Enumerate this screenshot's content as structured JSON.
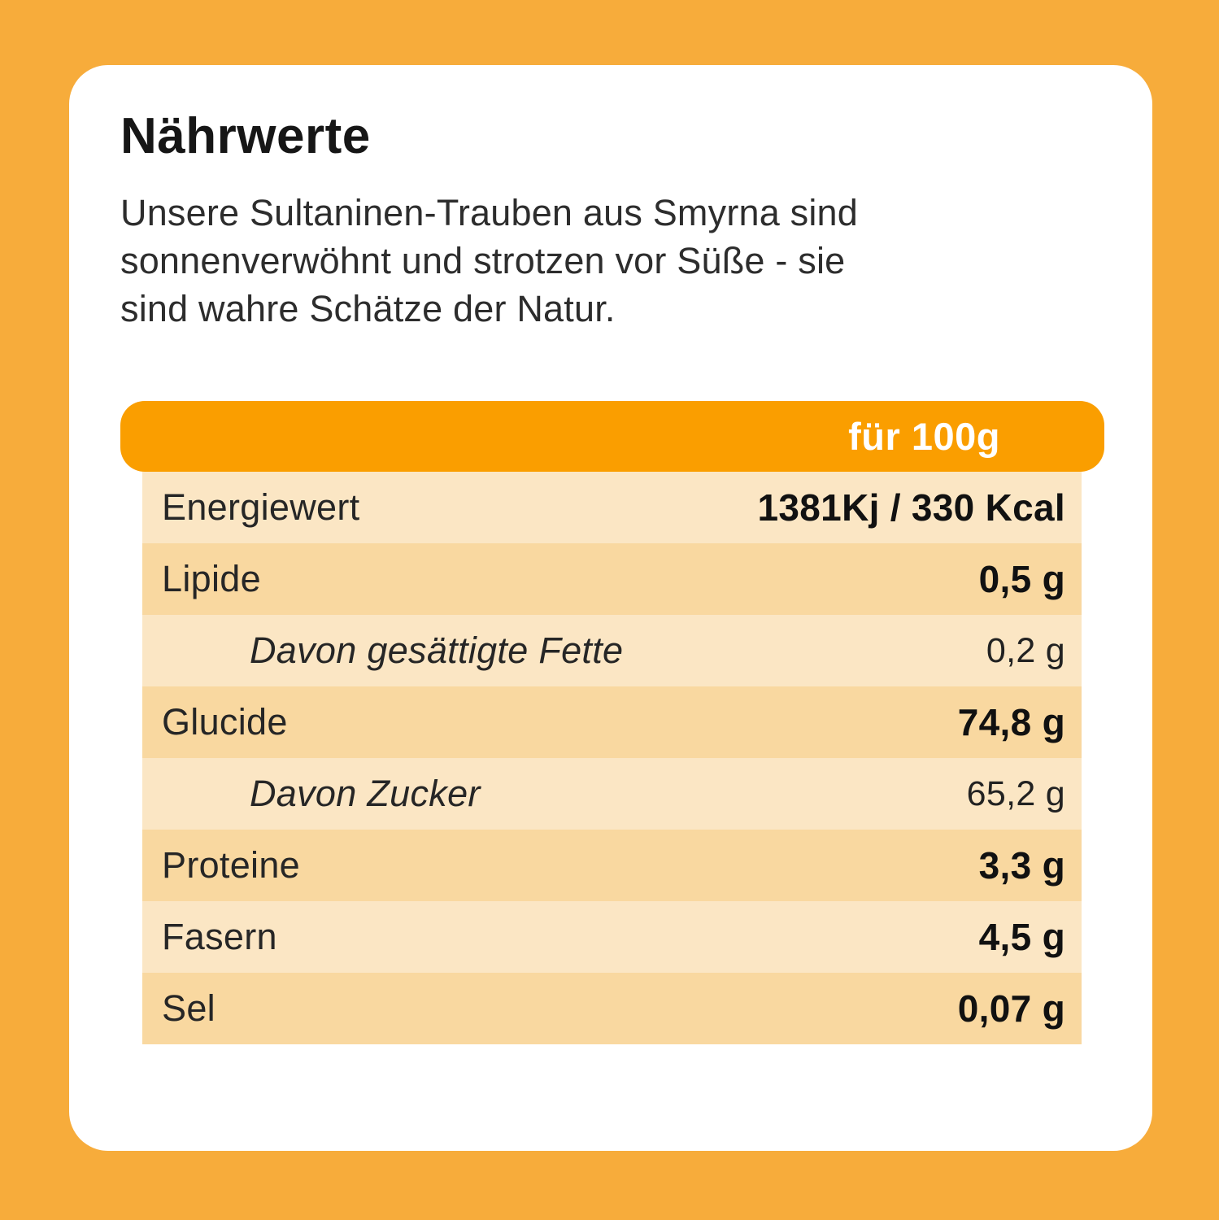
{
  "frame": {
    "background_color": "#F7AC3B"
  },
  "card": {
    "title": "Nährwerte",
    "description_lines": [
      "Unsere Sultaninen-Trauben aus Smyrna sind",
      "sonnenverwöhnt und strotzen vor Süße - sie",
      "sind wahre Schätze der Natur."
    ]
  },
  "table": {
    "header": {
      "label": "für 100g",
      "background_color": "#FA9E00",
      "text_color": "#FFFFFF"
    },
    "colors": {
      "row_light": "#FBE6C4",
      "row_dark": "#F9D8A0"
    },
    "rows": [
      {
        "label": "Energiewert",
        "value": "1381Kj / 330 Kcal",
        "tone": "light",
        "indent": false,
        "bold_value": true
      },
      {
        "label": "Lipide",
        "value": "0,5 g",
        "tone": "dark",
        "indent": false,
        "bold_value": true
      },
      {
        "label": "Davon gesättigte Fette",
        "value": "0,2 g",
        "tone": "light",
        "indent": true,
        "bold_value": false
      },
      {
        "label": "Glucide",
        "value": "74,8 g",
        "tone": "dark",
        "indent": false,
        "bold_value": true
      },
      {
        "label": "Davon Zucker",
        "value": "65,2 g",
        "tone": "light",
        "indent": true,
        "bold_value": false
      },
      {
        "label": "Proteine",
        "value": "3,3 g",
        "tone": "dark",
        "indent": false,
        "bold_value": true
      },
      {
        "label": "Fasern",
        "value": "4,5 g",
        "tone": "light",
        "indent": false,
        "bold_value": true
      },
      {
        "label": "Sel",
        "value": "0,07 g",
        "tone": "dark",
        "indent": false,
        "bold_value": true
      }
    ]
  }
}
